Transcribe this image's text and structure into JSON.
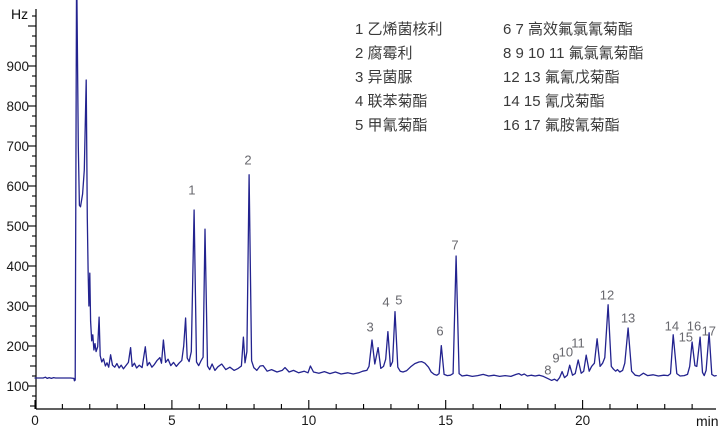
{
  "figure": {
    "y_unit_label": "Hz",
    "x_unit_label": "min",
    "background_color": "#ffffff",
    "trace_color": "#23238f",
    "axis_color": "#000000",
    "tick_label_color": "#1a1a1a",
    "peak_label_color": "#68686e",
    "legend_text_color": "#3a3a3a"
  },
  "legend": {
    "col1": [
      "1 乙烯菌核利",
      "2 腐霉利",
      "3 异菌脲",
      "4 联苯菊酯",
      "5 甲氰菊酯"
    ],
    "col2": [
      "6 7 高效氟氯氰菊酯",
      "8 9 10 11 氟氯氰菊酯",
      "12 13 氟氰戊菊酯",
      "14 15 氰戊菊酯",
      "16 17 氟胺氰菊酯"
    ]
  },
  "chart_data": {
    "type": "line",
    "kind": "gas-chromatogram",
    "title": "",
    "xlabel": "min",
    "ylabel": "Hz",
    "x_range_min": [
      0,
      24.9
    ],
    "y_axis_labeled_ticks": [
      100,
      200,
      300,
      400,
      500,
      600,
      700,
      800,
      900
    ],
    "y_minor_tick_step_hz": 25,
    "y_tick_span_hz": [
      50,
      1040
    ],
    "x_axis_labeled_ticks": [
      0,
      5,
      10,
      15,
      20
    ],
    "x_minor_tick_step_min": 1,
    "baseline_hz": 120,
    "grid": "off",
    "solvent_front_peaks": [
      {
        "rt_min": 1.52,
        "height_hz": "off-scale (clipped at top)"
      },
      {
        "rt_min": 1.87,
        "height_hz": 865
      }
    ],
    "peaks": [
      {
        "num": 1,
        "compound": "乙烯菌核利",
        "rt_min": 5.81,
        "height_hz": 540
      },
      {
        "num": 2,
        "compound": "腐霉利",
        "rt_min": 7.82,
        "height_hz": 628
      },
      {
        "num": 3,
        "compound": "异菌脲",
        "rt_min": 12.31,
        "height_hz": 215
      },
      {
        "num": 4,
        "compound": "联苯菊酯",
        "rt_min": 12.89,
        "height_hz": 236
      },
      {
        "num": 5,
        "compound": "甲氰菊酯",
        "rt_min": 13.15,
        "height_hz": 286
      },
      {
        "num": 6,
        "compound": "高效氟氯氰菊酯",
        "rt_min": 14.84,
        "height_hz": 201
      },
      {
        "num": 7,
        "compound": "高效氟氯氰菊酯",
        "rt_min": 15.38,
        "height_hz": 425
      },
      {
        "num": 8,
        "compound": "氟氯氰菊酯",
        "rt_min": 19.25,
        "height_hz": 136
      },
      {
        "num": 9,
        "compound": "氟氯氰菊酯",
        "rt_min": 19.53,
        "height_hz": 152
      },
      {
        "num": 10,
        "compound": "氟氯氰菊酯",
        "rt_min": 19.84,
        "height_hz": 165
      },
      {
        "num": 11,
        "compound": "氟氯氰菊酯",
        "rt_min": 20.13,
        "height_hz": 177
      },
      {
        "num": 12,
        "compound": "氟氰戊菊酯",
        "rt_min": 20.93,
        "height_hz": 303
      },
      {
        "num": 13,
        "compound": "氟氰戊菊酯",
        "rt_min": 21.66,
        "height_hz": 245
      },
      {
        "num": 14,
        "compound": "氰戊菊酯",
        "rt_min": 23.31,
        "height_hz": 228
      },
      {
        "num": 15,
        "compound": "氰戊菊酯",
        "rt_min": 24.0,
        "height_hz": 210
      },
      {
        "num": 16,
        "compound": "氟胺氰菊酯",
        "rt_min": 24.29,
        "height_hz": 222
      },
      {
        "num": 17,
        "compound": "氟胺氰菊酯",
        "rt_min": 24.62,
        "height_hz": 233
      }
    ],
    "peak_labels": [
      {
        "num": "1",
        "min": 5.73,
        "hz": 590
      },
      {
        "num": "2",
        "min": 7.78,
        "hz": 665
      },
      {
        "num": "3",
        "min": 12.24,
        "hz": 248
      },
      {
        "num": "4",
        "min": 12.82,
        "hz": 310
      },
      {
        "num": "5",
        "min": 13.29,
        "hz": 315
      },
      {
        "num": "6",
        "min": 14.79,
        "hz": 238
      },
      {
        "num": "7",
        "min": 15.34,
        "hz": 452
      },
      {
        "num": "8",
        "min": 18.73,
        "hz": 141
      },
      {
        "num": "9",
        "min": 19.03,
        "hz": 170
      },
      {
        "num": "10",
        "min": 19.39,
        "hz": 185
      },
      {
        "num": "11",
        "min": 19.83,
        "hz": 208
      },
      {
        "num": "12",
        "min": 20.89,
        "hz": 328
      },
      {
        "num": "13",
        "min": 21.66,
        "hz": 270
      },
      {
        "num": "14",
        "min": 23.26,
        "hz": 250
      },
      {
        "num": "15",
        "min": 23.77,
        "hz": 222
      },
      {
        "num": "16",
        "min": 24.07,
        "hz": 250
      },
      {
        "num": "17",
        "min": 24.61,
        "hz": 238
      }
    ],
    "trace_points": [
      [
        0.0,
        120
      ],
      [
        0.3,
        120
      ],
      [
        0.38,
        122
      ],
      [
        0.45,
        119
      ],
      [
        0.52,
        121
      ],
      [
        0.6,
        119
      ],
      [
        0.68,
        121
      ],
      [
        0.75,
        120
      ],
      [
        0.9,
        120
      ],
      [
        1.1,
        120
      ],
      [
        1.3,
        120
      ],
      [
        1.42,
        119
      ],
      [
        1.44,
        113
      ],
      [
        1.47,
        115
      ],
      [
        1.52,
        1160
      ],
      [
        1.58,
        700
      ],
      [
        1.62,
        552
      ],
      [
        1.66,
        548
      ],
      [
        1.74,
        580
      ],
      [
        1.8,
        640
      ],
      [
        1.87,
        865
      ],
      [
        1.91,
        520
      ],
      [
        1.94,
        390
      ],
      [
        1.97,
        300
      ],
      [
        2.0,
        382
      ],
      [
        2.03,
        262
      ],
      [
        2.07,
        213
      ],
      [
        2.11,
        228
      ],
      [
        2.15,
        190
      ],
      [
        2.19,
        206
      ],
      [
        2.23,
        186
      ],
      [
        2.29,
        198
      ],
      [
        2.34,
        272
      ],
      [
        2.38,
        176
      ],
      [
        2.44,
        160
      ],
      [
        2.5,
        168
      ],
      [
        2.57,
        150
      ],
      [
        2.63,
        158
      ],
      [
        2.69,
        147
      ],
      [
        2.76,
        178
      ],
      [
        2.83,
        152
      ],
      [
        2.91,
        147
      ],
      [
        2.99,
        156
      ],
      [
        3.07,
        145
      ],
      [
        3.15,
        152
      ],
      [
        3.23,
        143
      ],
      [
        3.31,
        150
      ],
      [
        3.41,
        159
      ],
      [
        3.49,
        196
      ],
      [
        3.55,
        149
      ],
      [
        3.63,
        157
      ],
      [
        3.71,
        145
      ],
      [
        3.81,
        152
      ],
      [
        3.91,
        146
      ],
      [
        4.03,
        198
      ],
      [
        4.1,
        151
      ],
      [
        4.18,
        159
      ],
      [
        4.27,
        147
      ],
      [
        4.36,
        154
      ],
      [
        4.46,
        164
      ],
      [
        4.56,
        171
      ],
      [
        4.62,
        157
      ],
      [
        4.69,
        215
      ],
      [
        4.77,
        159
      ],
      [
        4.86,
        167
      ],
      [
        4.96,
        151
      ],
      [
        5.06,
        159
      ],
      [
        5.16,
        149
      ],
      [
        5.26,
        157
      ],
      [
        5.36,
        164
      ],
      [
        5.43,
        200
      ],
      [
        5.5,
        270
      ],
      [
        5.56,
        170
      ],
      [
        5.63,
        161
      ],
      [
        5.71,
        186
      ],
      [
        5.81,
        540
      ],
      [
        5.9,
        160
      ],
      [
        5.98,
        151
      ],
      [
        6.07,
        164
      ],
      [
        6.14,
        172
      ],
      [
        6.21,
        492
      ],
      [
        6.3,
        150
      ],
      [
        6.38,
        141
      ],
      [
        6.47,
        155
      ],
      [
        6.57,
        139
      ],
      [
        6.68,
        148
      ],
      [
        6.82,
        155
      ],
      [
        6.97,
        141
      ],
      [
        7.12,
        147
      ],
      [
        7.27,
        139
      ],
      [
        7.42,
        144
      ],
      [
        7.54,
        150
      ],
      [
        7.61,
        222
      ],
      [
        7.67,
        158
      ],
      [
        7.74,
        186
      ],
      [
        7.82,
        628
      ],
      [
        7.91,
        163
      ],
      [
        7.99,
        146
      ],
      [
        8.1,
        139
      ],
      [
        8.22,
        150
      ],
      [
        8.33,
        151
      ],
      [
        8.48,
        137
      ],
      [
        8.64,
        141
      ],
      [
        8.84,
        135
      ],
      [
        9.03,
        139
      ],
      [
        9.13,
        146
      ],
      [
        9.28,
        135
      ],
      [
        9.44,
        139
      ],
      [
        9.63,
        133
      ],
      [
        9.83,
        137
      ],
      [
        9.97,
        133
      ],
      [
        10.06,
        150
      ],
      [
        10.17,
        135
      ],
      [
        10.37,
        132
      ],
      [
        10.57,
        136
      ],
      [
        10.77,
        131
      ],
      [
        10.97,
        135
      ],
      [
        11.18,
        130
      ],
      [
        11.42,
        133
      ],
      [
        11.62,
        130
      ],
      [
        11.82,
        133
      ],
      [
        11.97,
        137
      ],
      [
        12.12,
        139
      ],
      [
        12.2,
        149
      ],
      [
        12.31,
        215
      ],
      [
        12.41,
        155
      ],
      [
        12.53,
        196
      ],
      [
        12.63,
        144
      ],
      [
        12.73,
        149
      ],
      [
        12.81,
        167
      ],
      [
        12.89,
        236
      ],
      [
        12.98,
        149
      ],
      [
        13.06,
        161
      ],
      [
        13.15,
        286
      ],
      [
        13.25,
        147
      ],
      [
        13.34,
        137
      ],
      [
        13.44,
        135
      ],
      [
        13.57,
        138
      ],
      [
        13.72,
        148
      ],
      [
        13.87,
        156
      ],
      [
        14.02,
        160
      ],
      [
        14.12,
        161
      ],
      [
        14.24,
        157
      ],
      [
        14.37,
        147
      ],
      [
        14.47,
        135
      ],
      [
        14.58,
        129
      ],
      [
        14.68,
        127
      ],
      [
        14.76,
        131
      ],
      [
        14.84,
        201
      ],
      [
        14.94,
        129
      ],
      [
        15.06,
        126
      ],
      [
        15.17,
        127
      ],
      [
        15.27,
        131
      ],
      [
        15.38,
        425
      ],
      [
        15.49,
        131
      ],
      [
        15.6,
        125
      ],
      [
        15.78,
        127
      ],
      [
        15.97,
        124
      ],
      [
        16.17,
        126
      ],
      [
        16.37,
        129
      ],
      [
        16.57,
        125
      ],
      [
        16.77,
        127
      ],
      [
        16.97,
        124
      ],
      [
        17.17,
        126
      ],
      [
        17.38,
        124
      ],
      [
        17.57,
        129
      ],
      [
        17.67,
        131
      ],
      [
        17.77,
        127
      ],
      [
        17.87,
        130
      ],
      [
        17.98,
        125
      ],
      [
        18.12,
        127
      ],
      [
        18.27,
        125
      ],
      [
        18.42,
        127
      ],
      [
        18.57,
        124
      ],
      [
        18.72,
        119
      ],
      [
        18.87,
        114
      ],
      [
        18.97,
        117
      ],
      [
        19.07,
        113
      ],
      [
        19.16,
        121
      ],
      [
        19.25,
        136
      ],
      [
        19.34,
        121
      ],
      [
        19.44,
        127
      ],
      [
        19.53,
        152
      ],
      [
        19.63,
        127
      ],
      [
        19.73,
        131
      ],
      [
        19.84,
        165
      ],
      [
        19.95,
        132
      ],
      [
        20.04,
        137
      ],
      [
        20.13,
        177
      ],
      [
        20.24,
        137
      ],
      [
        20.33,
        149
      ],
      [
        20.43,
        157
      ],
      [
        20.53,
        218
      ],
      [
        20.64,
        149
      ],
      [
        20.73,
        157
      ],
      [
        20.81,
        171
      ],
      [
        20.93,
        303
      ],
      [
        21.05,
        149
      ],
      [
        21.13,
        142
      ],
      [
        21.21,
        137
      ],
      [
        21.27,
        141
      ],
      [
        21.36,
        135
      ],
      [
        21.46,
        139
      ],
      [
        21.54,
        157
      ],
      [
        21.66,
        245
      ],
      [
        21.79,
        137
      ],
      [
        21.92,
        127
      ],
      [
        22.07,
        125
      ],
      [
        22.22,
        132
      ],
      [
        22.37,
        126
      ],
      [
        22.57,
        128
      ],
      [
        22.77,
        125
      ],
      [
        22.97,
        127
      ],
      [
        23.12,
        126
      ],
      [
        23.21,
        131
      ],
      [
        23.31,
        228
      ],
      [
        23.44,
        131
      ],
      [
        23.56,
        125
      ],
      [
        23.71,
        126
      ],
      [
        23.83,
        129
      ],
      [
        23.91,
        149
      ],
      [
        24.0,
        210
      ],
      [
        24.1,
        151
      ],
      [
        24.17,
        149
      ],
      [
        24.29,
        222
      ],
      [
        24.38,
        134
      ],
      [
        24.44,
        126
      ],
      [
        24.51,
        139
      ],
      [
        24.62,
        233
      ],
      [
        24.72,
        129
      ],
      [
        24.81,
        125
      ],
      [
        24.88,
        126
      ]
    ]
  }
}
